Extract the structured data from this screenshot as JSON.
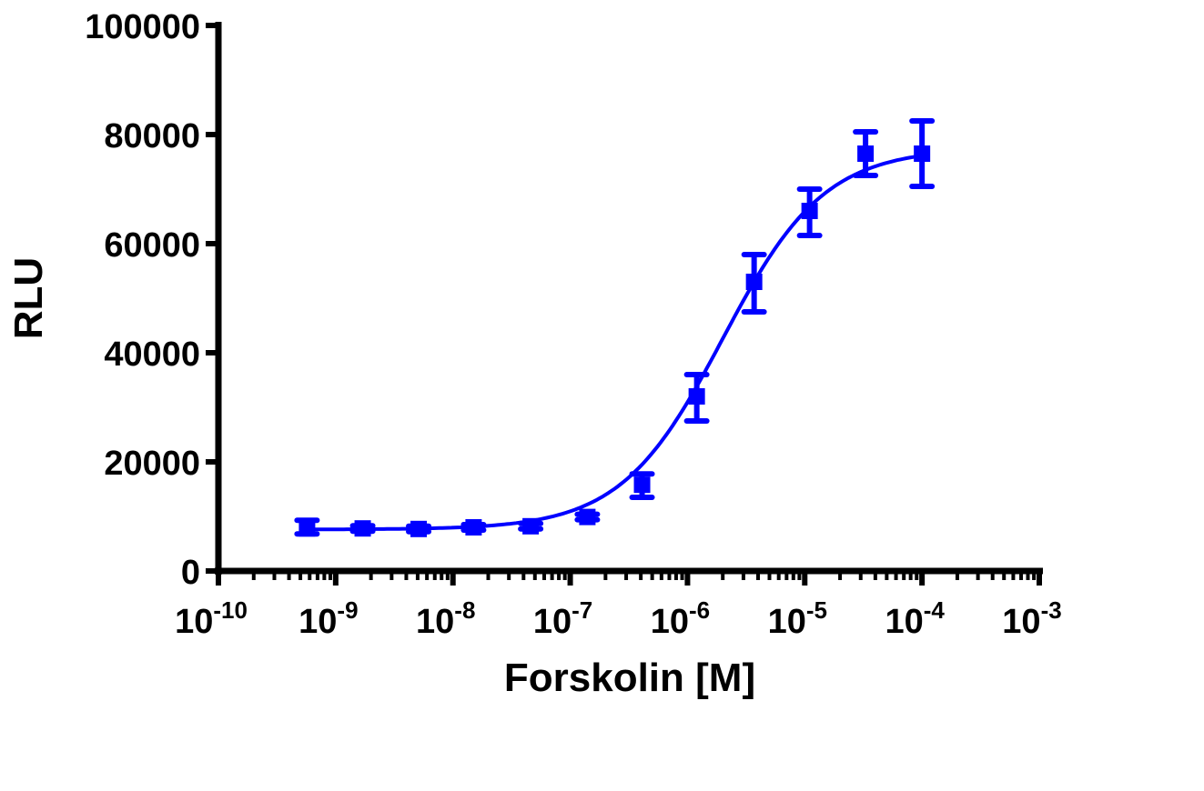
{
  "chart_data": {
    "type": "scatter",
    "title": "",
    "xlabel": "Forskolin [M]",
    "ylabel": "RLU",
    "x_scale": "log",
    "xlim": [
      1e-10,
      0.001
    ],
    "ylim": [
      0,
      100000
    ],
    "grid": false,
    "x_tick_labels": [
      {
        "base": "10",
        "exp": "-10",
        "value": 1e-10
      },
      {
        "base": "10",
        "exp": "-9",
        "value": 1e-09
      },
      {
        "base": "10",
        "exp": "-8",
        "value": 1e-08
      },
      {
        "base": "10",
        "exp": "-7",
        "value": 1e-07
      },
      {
        "base": "10",
        "exp": "-6",
        "value": 1e-06
      },
      {
        "base": "10",
        "exp": "-5",
        "value": 1e-05
      },
      {
        "base": "10",
        "exp": "-4",
        "value": 0.0001
      },
      {
        "base": "10",
        "exp": "-3",
        "value": 0.001
      }
    ],
    "y_tick_labels": [
      "0",
      "20000",
      "40000",
      "60000",
      "80000",
      "100000"
    ],
    "y_ticks": [
      0,
      20000,
      40000,
      60000,
      80000,
      100000
    ],
    "series": [
      {
        "color": "#0000ff",
        "marker": "square",
        "x": [
          5.7e-10,
          1.7e-09,
          5.1e-09,
          1.5e-08,
          4.6e-08,
          1.4e-07,
          4.1e-07,
          1.2e-06,
          3.7e-06,
          1.1e-05,
          3.3e-05,
          0.0001
        ],
        "y": [
          7800,
          7800,
          7700,
          8000,
          8200,
          9900,
          15800,
          32000,
          53000,
          66000,
          76500,
          76500
        ],
        "error_low": [
          6800,
          7300,
          7200,
          7500,
          7700,
          9400,
          13500,
          27500,
          47500,
          61500,
          72500,
          70500
        ],
        "error_high": [
          9300,
          8300,
          8200,
          8500,
          8700,
          10400,
          17800,
          36000,
          58000,
          70000,
          80500,
          82500
        ]
      }
    ],
    "fit": {
      "type": "sigmoidal dose-response",
      "bottom": 7600,
      "top": 77500,
      "log_ec50": -5.7,
      "hill": 1.0
    }
  }
}
